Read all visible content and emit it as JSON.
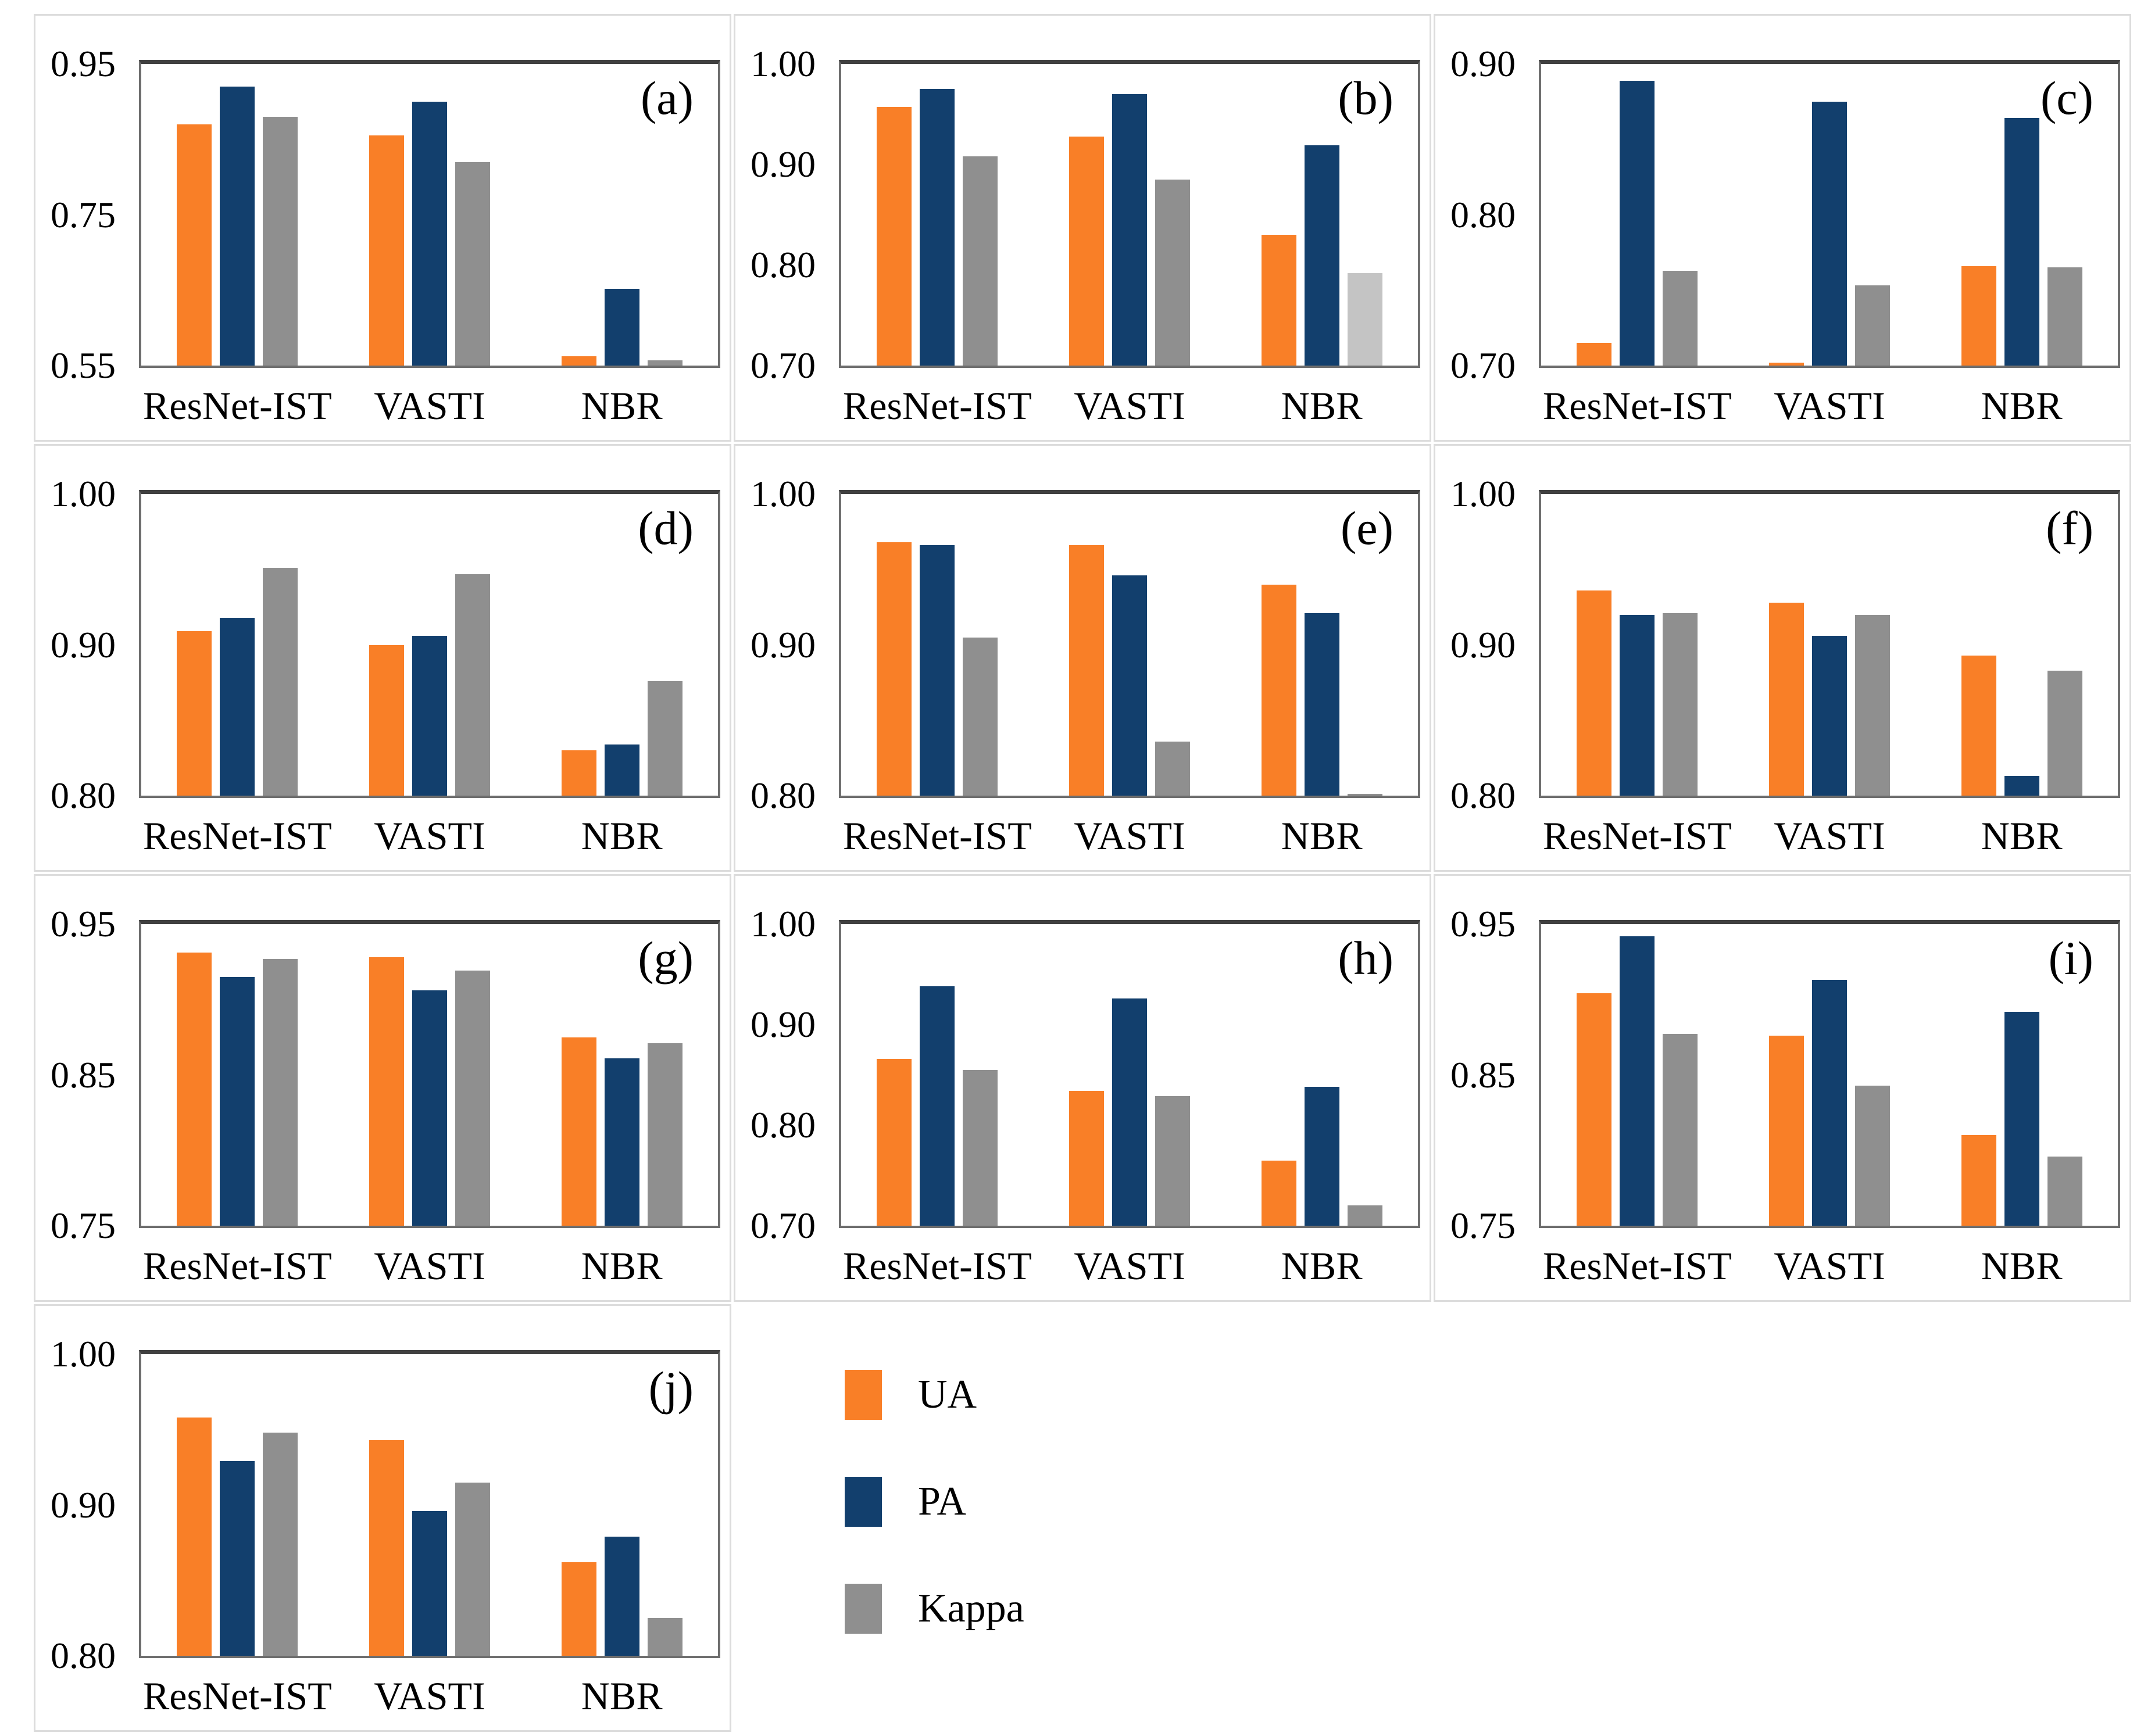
{
  "figure": {
    "series_colors": [
      "#F97F27",
      "#123F6D",
      "#8F8F8F"
    ],
    "legend": {
      "items": [
        {
          "label": "UA",
          "color": "#F97F27"
        },
        {
          "label": "PA",
          "color": "#123F6D"
        },
        {
          "label": "Kappa",
          "color": "#8F8F8F"
        }
      ]
    }
  },
  "chart_data": [
    {
      "type": "bar",
      "label": "(a)",
      "categories": [
        "ResNet-IST",
        "VASTI",
        "NBR"
      ],
      "ylim": [
        0.55,
        0.95
      ],
      "yticks": [
        "0.95",
        "0.75",
        "0.55"
      ],
      "grid": false,
      "legend_position": "bottom-center-cell",
      "series": [
        {
          "name": "UA",
          "values": [
            0.87,
            0.855,
            0.562
          ]
        },
        {
          "name": "PA",
          "values": [
            0.92,
            0.9,
            0.652
          ]
        },
        {
          "name": "Kappa",
          "values": [
            0.88,
            0.82,
            0.557
          ]
        }
      ]
    },
    {
      "type": "bar",
      "label": "(b)",
      "categories": [
        "ResNet-IST",
        "VASTI",
        "NBR"
      ],
      "ylim": [
        0.7,
        1.0
      ],
      "yticks": [
        "1.00",
        "0.90",
        "0.80",
        "0.70"
      ],
      "grid": false,
      "color_overrides": [
        {
          "series": 2,
          "index": 2,
          "color": "#C4C4C4"
        }
      ],
      "series": [
        {
          "name": "UA",
          "values": [
            0.957,
            0.928,
            0.83
          ]
        },
        {
          "name": "PA",
          "values": [
            0.975,
            0.97,
            0.919
          ]
        },
        {
          "name": "Kappa",
          "values": [
            0.908,
            0.885,
            0.792
          ]
        }
      ]
    },
    {
      "type": "bar",
      "label": "(c)",
      "categories": [
        "ResNet-IST",
        "VASTI",
        "NBR"
      ],
      "ylim": [
        0.7,
        0.9
      ],
      "yticks": [
        "0.90",
        "0.80",
        "0.70"
      ],
      "grid": false,
      "series": [
        {
          "name": "UA",
          "values": [
            0.715,
            0.702,
            0.766
          ]
        },
        {
          "name": "PA",
          "values": [
            0.889,
            0.875,
            0.864
          ]
        },
        {
          "name": "Kappa",
          "values": [
            0.763,
            0.753,
            0.765
          ]
        }
      ]
    },
    {
      "type": "bar",
      "label": "(d)",
      "categories": [
        "ResNet-IST",
        "VASTI",
        "NBR"
      ],
      "ylim": [
        0.8,
        1.0
      ],
      "yticks": [
        "1.00",
        "0.90",
        "0.80"
      ],
      "grid": false,
      "series": [
        {
          "name": "UA",
          "values": [
            0.909,
            0.9,
            0.83
          ]
        },
        {
          "name": "PA",
          "values": [
            0.918,
            0.906,
            0.834
          ]
        },
        {
          "name": "Kappa",
          "values": [
            0.951,
            0.947,
            0.876
          ]
        }
      ]
    },
    {
      "type": "bar",
      "label": "(e)",
      "categories": [
        "ResNet-IST",
        "VASTI",
        "NBR"
      ],
      "ylim": [
        0.8,
        1.0
      ],
      "yticks": [
        "1.00",
        "0.90",
        "0.80"
      ],
      "grid": false,
      "series": [
        {
          "name": "UA",
          "values": [
            0.968,
            0.966,
            0.94
          ]
        },
        {
          "name": "PA",
          "values": [
            0.966,
            0.946,
            0.921
          ]
        },
        {
          "name": "Kappa",
          "values": [
            0.905,
            0.836,
            0.801
          ]
        }
      ]
    },
    {
      "type": "bar",
      "label": "(f)",
      "categories": [
        "ResNet-IST",
        "VASTI",
        "NBR"
      ],
      "ylim": [
        0.8,
        1.0
      ],
      "yticks": [
        "1.00",
        "0.90",
        "0.80"
      ],
      "grid": false,
      "series": [
        {
          "name": "UA",
          "values": [
            0.936,
            0.928,
            0.893
          ]
        },
        {
          "name": "PA",
          "values": [
            0.92,
            0.906,
            0.813
          ]
        },
        {
          "name": "Kappa",
          "values": [
            0.921,
            0.92,
            0.883
          ]
        }
      ]
    },
    {
      "type": "bar",
      "label": "(g)",
      "categories": [
        "ResNet-IST",
        "VASTI",
        "NBR"
      ],
      "ylim": [
        0.75,
        0.95
      ],
      "yticks": [
        "0.95",
        "0.85",
        "0.75"
      ],
      "grid": false,
      "series": [
        {
          "name": "UA",
          "values": [
            0.931,
            0.928,
            0.875
          ]
        },
        {
          "name": "PA",
          "values": [
            0.915,
            0.906,
            0.861
          ]
        },
        {
          "name": "Kappa",
          "values": [
            0.927,
            0.919,
            0.871
          ]
        }
      ]
    },
    {
      "type": "bar",
      "label": "(h)",
      "categories": [
        "ResNet-IST",
        "VASTI",
        "NBR"
      ],
      "ylim": [
        0.7,
        1.0
      ],
      "yticks": [
        "1.00",
        "0.90",
        "0.80",
        "0.70"
      ],
      "grid": false,
      "series": [
        {
          "name": "UA",
          "values": [
            0.866,
            0.834,
            0.765
          ]
        },
        {
          "name": "PA",
          "values": [
            0.938,
            0.926,
            0.838
          ]
        },
        {
          "name": "Kappa",
          "values": [
            0.855,
            0.829,
            0.72
          ]
        }
      ]
    },
    {
      "type": "bar",
      "label": "(i)",
      "categories": [
        "ResNet-IST",
        "VASTI",
        "NBR"
      ],
      "ylim": [
        0.75,
        0.95
      ],
      "yticks": [
        "0.95",
        "0.85",
        "0.75"
      ],
      "grid": false,
      "series": [
        {
          "name": "UA",
          "values": [
            0.904,
            0.876,
            0.81
          ]
        },
        {
          "name": "PA",
          "values": [
            0.942,
            0.913,
            0.892
          ]
        },
        {
          "name": "Kappa",
          "values": [
            0.877,
            0.843,
            0.796
          ]
        }
      ]
    },
    {
      "type": "bar",
      "label": "(j)",
      "categories": [
        "ResNet-IST",
        "VASTI",
        "NBR"
      ],
      "ylim": [
        0.8,
        1.0
      ],
      "yticks": [
        "1.00",
        "0.90",
        "0.80"
      ],
      "grid": false,
      "series": [
        {
          "name": "UA",
          "values": [
            0.958,
            0.943,
            0.862
          ]
        },
        {
          "name": "PA",
          "values": [
            0.929,
            0.896,
            0.879
          ]
        },
        {
          "name": "Kappa",
          "values": [
            0.948,
            0.915,
            0.825
          ]
        }
      ]
    }
  ]
}
